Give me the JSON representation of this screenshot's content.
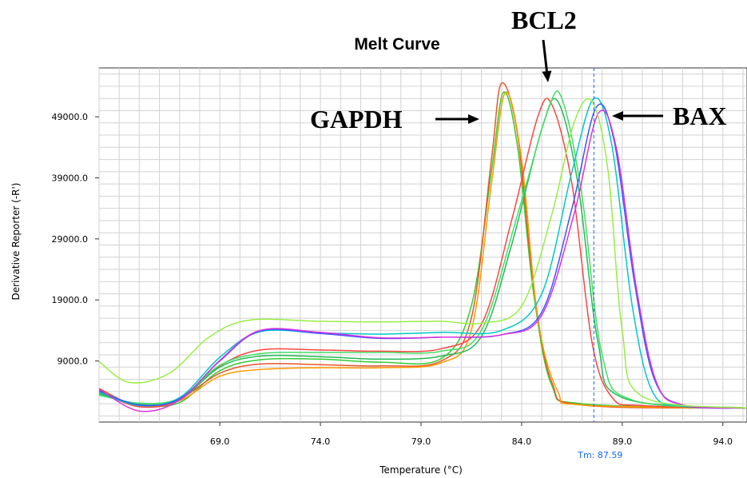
{
  "chart_data": {
    "type": "line",
    "title": "Melt Curve",
    "xlabel": "Temperature (°C)",
    "ylabel": "Derivative Reporter (-R')",
    "xlim": [
      63.0,
      95.2
    ],
    "ylim": [
      -1000,
      57000
    ],
    "x_ticks": [
      69.0,
      74.0,
      79.0,
      84.0,
      89.0,
      94.0
    ],
    "x_tick_labels": [
      "69.0",
      "74.0",
      "79.0",
      "84.0",
      "89.0",
      "94.0"
    ],
    "y_ticks": [
      9000,
      19000,
      29000,
      39000,
      49000
    ],
    "y_tick_labels": [
      "9000.0",
      "19000.0",
      "29000.0",
      "39000.0",
      "49000.0"
    ],
    "grid": true,
    "tm_marker": {
      "x": 87.59,
      "label": "Tm: 87.59"
    },
    "annotations": [
      {
        "text": "GAPDH",
        "points_to": "left peak"
      },
      {
        "text": "BCL2",
        "points_to": "middle peak"
      },
      {
        "text": "BAX",
        "points_to": "right peak"
      }
    ],
    "series": [
      {
        "color": "#33cc33",
        "points": [
          [
            63,
            3800
          ],
          [
            65,
            1800
          ],
          [
            67,
            2200
          ],
          [
            69,
            7400
          ],
          [
            71,
            9200
          ],
          [
            74,
            9300
          ],
          [
            77,
            8800
          ],
          [
            80,
            9400
          ],
          [
            81.5,
            18000
          ],
          [
            82.5,
            40000
          ],
          [
            83.1,
            53000
          ],
          [
            83.8,
            44000
          ],
          [
            84.6,
            20000
          ],
          [
            85.5,
            5000
          ],
          [
            87,
            2000
          ],
          [
            95.2,
            1300
          ]
        ]
      },
      {
        "color": "#e8562a",
        "points": [
          [
            63,
            4500
          ],
          [
            65,
            1600
          ],
          [
            67,
            2800
          ],
          [
            69,
            7000
          ],
          [
            71,
            8500
          ],
          [
            74,
            8400
          ],
          [
            77,
            8200
          ],
          [
            80,
            9000
          ],
          [
            81.5,
            16000
          ],
          [
            82.5,
            42000
          ],
          [
            83.0,
            54500
          ],
          [
            83.8,
            46000
          ],
          [
            84.6,
            21000
          ],
          [
            85.5,
            5500
          ],
          [
            87,
            1800
          ],
          [
            95.2,
            1300
          ]
        ]
      },
      {
        "color": "#ff9900",
        "points": [
          [
            63,
            4200
          ],
          [
            65,
            1700
          ],
          [
            67,
            2500
          ],
          [
            69,
            6500
          ],
          [
            71,
            7600
          ],
          [
            74,
            7900
          ],
          [
            77,
            7900
          ],
          [
            80,
            8700
          ],
          [
            81.5,
            14000
          ],
          [
            82.5,
            38000
          ],
          [
            83.2,
            53000
          ],
          [
            84,
            42000
          ],
          [
            84.8,
            16000
          ],
          [
            85.8,
            4000
          ],
          [
            87,
            1800
          ],
          [
            95.2,
            1300
          ]
        ]
      },
      {
        "color": "#ff4444",
        "points": [
          [
            63,
            4000
          ],
          [
            65,
            1500
          ],
          [
            67,
            2600
          ],
          [
            69,
            8200
          ],
          [
            71,
            10800
          ],
          [
            74,
            10800
          ],
          [
            77,
            10600
          ],
          [
            80,
            11000
          ],
          [
            82,
            15000
          ],
          [
            83.5,
            32000
          ],
          [
            84.8,
            49000
          ],
          [
            85.5,
            51000
          ],
          [
            86.5,
            38000
          ],
          [
            87.5,
            12000
          ],
          [
            88.5,
            3000
          ],
          [
            90,
            1700
          ],
          [
            95.2,
            1300
          ]
        ]
      },
      {
        "color": "#22bb55",
        "points": [
          [
            63,
            3600
          ],
          [
            65,
            1900
          ],
          [
            67,
            2700
          ],
          [
            69,
            8000
          ],
          [
            71,
            9800
          ],
          [
            74,
            9700
          ],
          [
            77,
            9300
          ],
          [
            80,
            9800
          ],
          [
            82,
            13000
          ],
          [
            83.5,
            28000
          ],
          [
            85,
            47000
          ],
          [
            85.8,
            51500
          ],
          [
            86.8,
            38000
          ],
          [
            87.8,
            12000
          ],
          [
            89,
            3000
          ],
          [
            95.2,
            1300
          ]
        ]
      },
      {
        "color": "#44dd66",
        "points": [
          [
            63,
            3400
          ],
          [
            65,
            2100
          ],
          [
            67,
            2900
          ],
          [
            69,
            8300
          ],
          [
            71,
            10200
          ],
          [
            74,
            10400
          ],
          [
            77,
            10400
          ],
          [
            80,
            10600
          ],
          [
            82,
            14000
          ],
          [
            83.8,
            33000
          ],
          [
            85.3,
            50000
          ],
          [
            86,
            52000
          ],
          [
            87,
            36000
          ],
          [
            88,
            10000
          ],
          [
            89.5,
            2600
          ],
          [
            95.2,
            1300
          ]
        ]
      },
      {
        "color": "#00c8c8",
        "points": [
          [
            63,
            3900
          ],
          [
            65,
            1700
          ],
          [
            67,
            3000
          ],
          [
            69,
            9600
          ],
          [
            71,
            13800
          ],
          [
            74,
            13600
          ],
          [
            77,
            13400
          ],
          [
            80,
            13700
          ],
          [
            83,
            14000
          ],
          [
            85,
            20000
          ],
          [
            86.5,
            40000
          ],
          [
            87.6,
            52000
          ],
          [
            88.5,
            44000
          ],
          [
            89.5,
            18000
          ],
          [
            90.5,
            4000
          ],
          [
            92,
            1600
          ],
          [
            95.2,
            1300
          ]
        ]
      },
      {
        "color": "#3b56ff",
        "points": [
          [
            63,
            4100
          ],
          [
            65,
            1800
          ],
          [
            67,
            2800
          ],
          [
            69,
            9000
          ],
          [
            71,
            13900
          ],
          [
            74,
            13500
          ],
          [
            77,
            12700
          ],
          [
            80,
            12900
          ],
          [
            83,
            13300
          ],
          [
            85,
            17000
          ],
          [
            86.5,
            34000
          ],
          [
            87.7,
            50500
          ],
          [
            88.6,
            45000
          ],
          [
            89.6,
            22000
          ],
          [
            90.6,
            6000
          ],
          [
            92,
            1800
          ],
          [
            95.2,
            1300
          ]
        ]
      },
      {
        "color": "#dd33dd",
        "points": [
          [
            63,
            4400
          ],
          [
            65,
            800
          ],
          [
            67,
            2600
          ],
          [
            69,
            9100
          ],
          [
            71,
            14000
          ],
          [
            74,
            13700
          ],
          [
            77,
            12800
          ],
          [
            80,
            12900
          ],
          [
            83,
            13300
          ],
          [
            85,
            16500
          ],
          [
            86.6,
            33000
          ],
          [
            87.8,
            49500
          ],
          [
            88.7,
            44000
          ],
          [
            89.7,
            21000
          ],
          [
            90.7,
            5500
          ],
          [
            92,
            1800
          ],
          [
            95.2,
            1300
          ]
        ]
      },
      {
        "color": "#99ee44",
        "points": [
          [
            63,
            8900
          ],
          [
            64.5,
            5500
          ],
          [
            66.5,
            7000
          ],
          [
            68.5,
            13000
          ],
          [
            70.5,
            15700
          ],
          [
            74,
            15500
          ],
          [
            77,
            15400
          ],
          [
            80,
            15500
          ],
          [
            82,
            15200
          ],
          [
            84,
            18000
          ],
          [
            85.5,
            33000
          ],
          [
            86.6,
            48000
          ],
          [
            87.5,
            51500
          ],
          [
            88.3,
            40000
          ],
          [
            89,
            14000
          ],
          [
            90,
            3200
          ],
          [
            95.2,
            1300
          ]
        ]
      }
    ]
  }
}
